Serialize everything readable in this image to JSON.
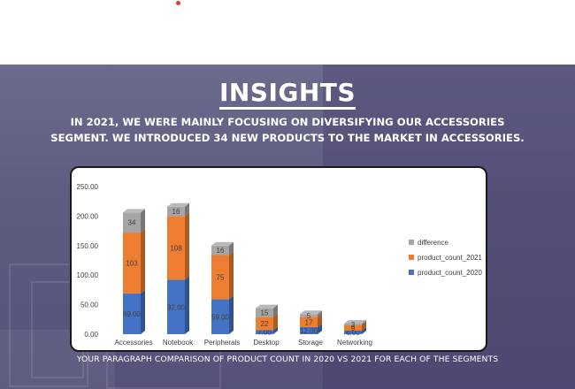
{
  "header": {
    "indicator_color": "#e53935"
  },
  "slide": {
    "title": "INSIGHTS",
    "description_line1": "IN 2021, WE WERE MAINLY FOCUSING ON DIVERSIFYING OUR ACCESSORIES",
    "description_line2": "SEGMENT. WE INTRODUCED 34 NEW PRODUCTS TO THE MARKET IN ACCESSORIES.",
    "footer": "YOUR PARAGRAPH COMPARISON OF PRODUCT COUNT IN 2020 VS 2021 FOR EACH OF THE SEGMENTS",
    "background_color": "#5f5e82"
  },
  "chart_data": {
    "type": "bar",
    "stacked": true,
    "style": "3d-column",
    "categories": [
      "Accessories",
      "Notebook",
      "Peripherals",
      "Desktop",
      "Storage",
      "Networking"
    ],
    "series": [
      {
        "name": "product_count_2020",
        "color": "#4472c4",
        "values": [
          69,
          92,
          59,
          7,
          12,
          6
        ],
        "labels": [
          "69.00",
          "92.00",
          "59.00",
          "7.00",
          "12.00",
          "6.00"
        ]
      },
      {
        "name": "product_count_2021",
        "color": "#ed7d31",
        "values": [
          103,
          108,
          75,
          22,
          17,
          9
        ],
        "labels": [
          "103",
          "108",
          "75",
          "22",
          "17",
          "9"
        ]
      },
      {
        "name": "difference",
        "color": "#a5a5a5",
        "values": [
          34,
          16,
          16,
          15,
          5,
          3
        ],
        "labels": [
          "34",
          "16",
          "16",
          "15",
          "5",
          "3"
        ]
      }
    ],
    "y_ticks": [
      "0.00",
      "50.00",
      "100.00",
      "150.00",
      "200.00",
      "250.00"
    ],
    "ylim": [
      0,
      250
    ],
    "legend_order": [
      "difference",
      "product_count_2021",
      "product_count_2020"
    ],
    "legend_position": "right",
    "grid": false
  }
}
